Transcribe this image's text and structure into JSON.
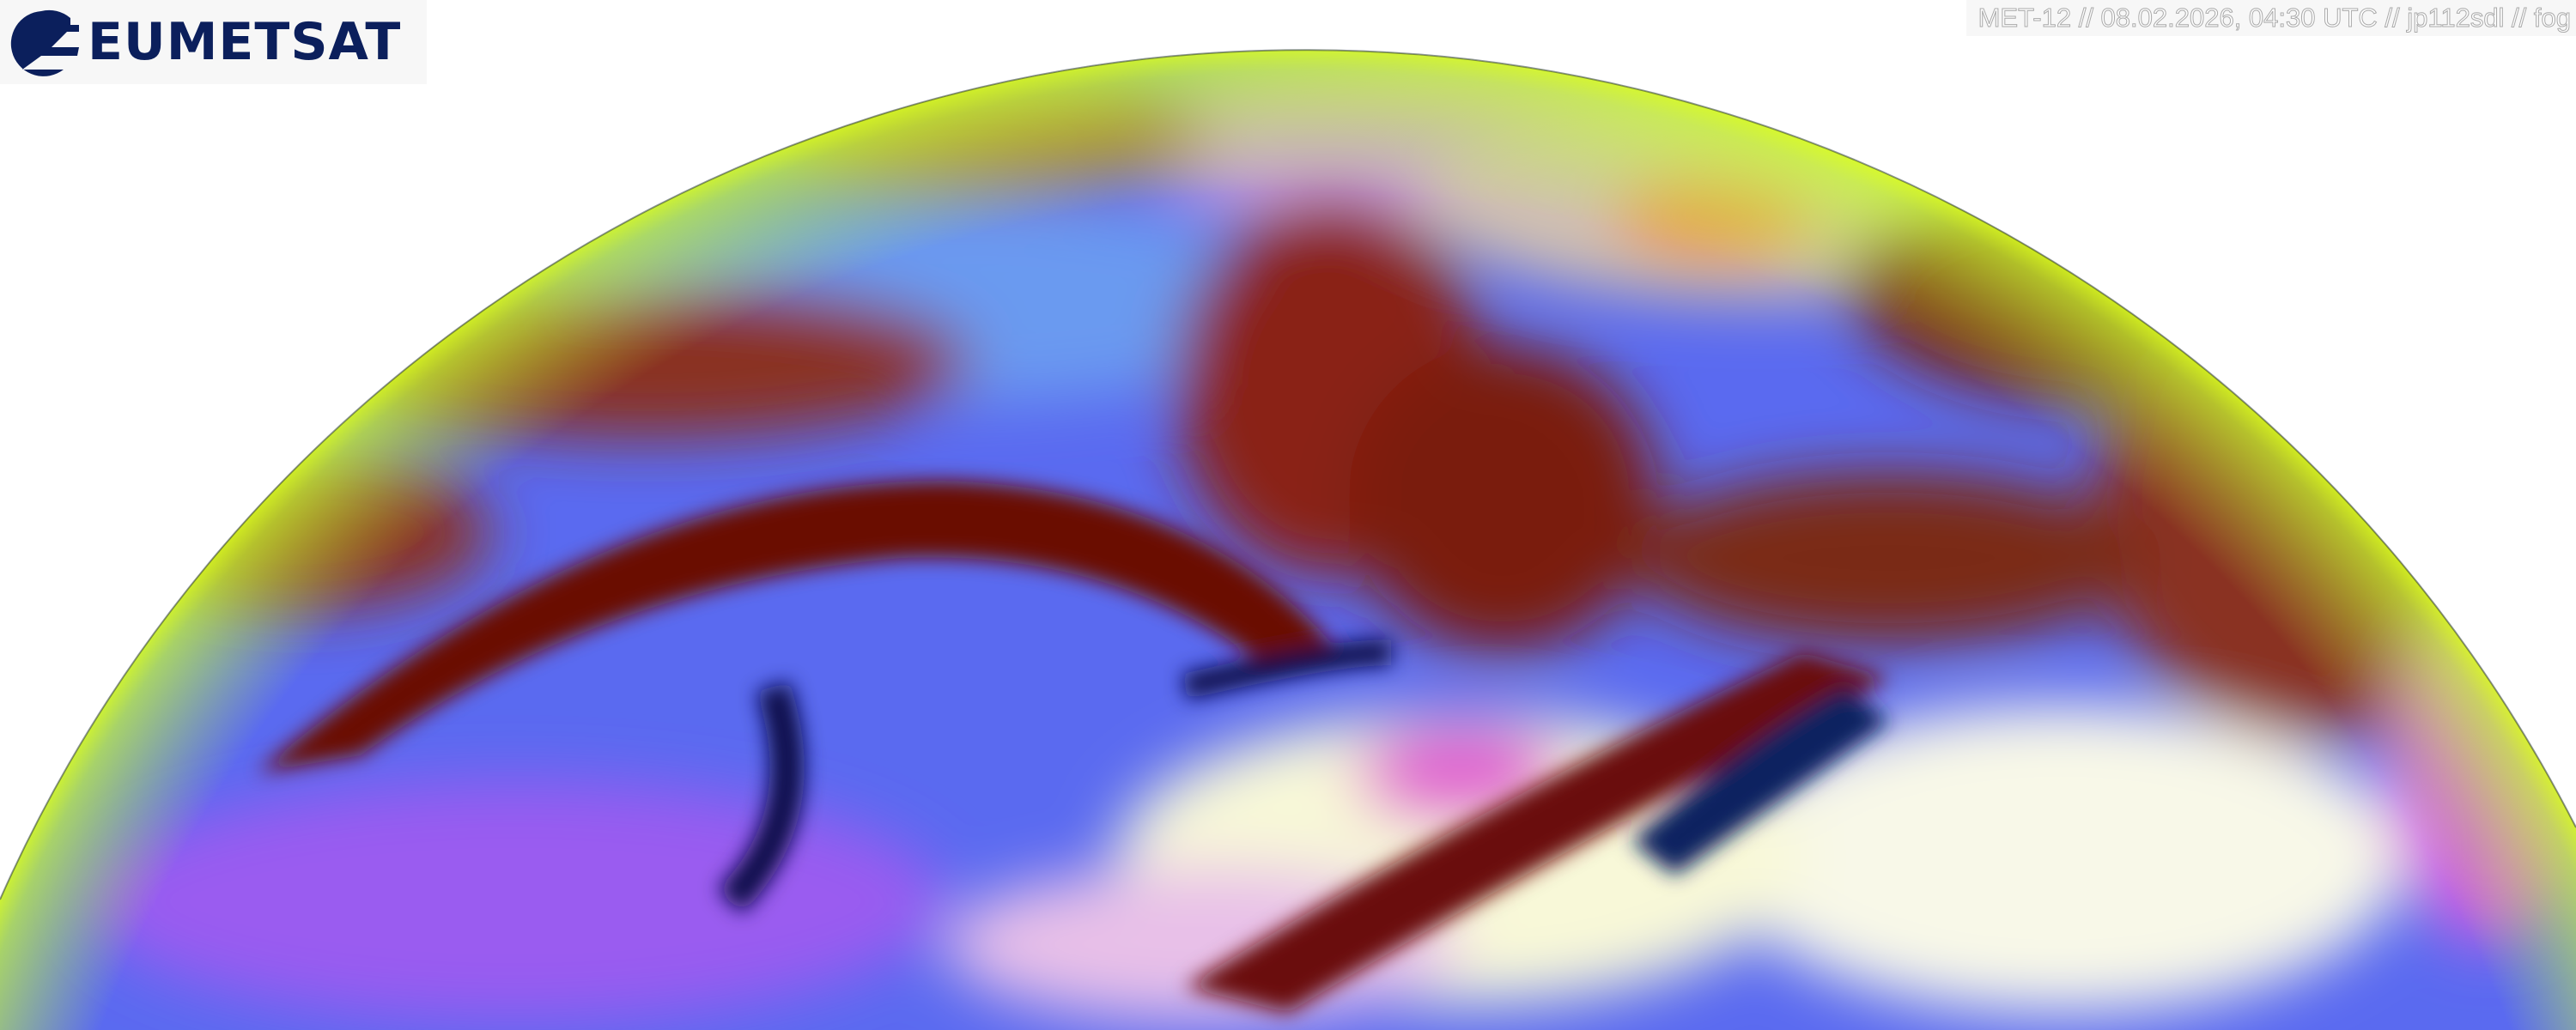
{
  "logo": {
    "text": "EUMETSAT",
    "color": "#0b1f5c"
  },
  "caption": {
    "text": "MET-12 // 08.02.2026, 04:30 UTC // jp112sdl // fog"
  },
  "image": {
    "type": "satellite-rgb-composite",
    "view": "earth-disk-northern-part"
  }
}
